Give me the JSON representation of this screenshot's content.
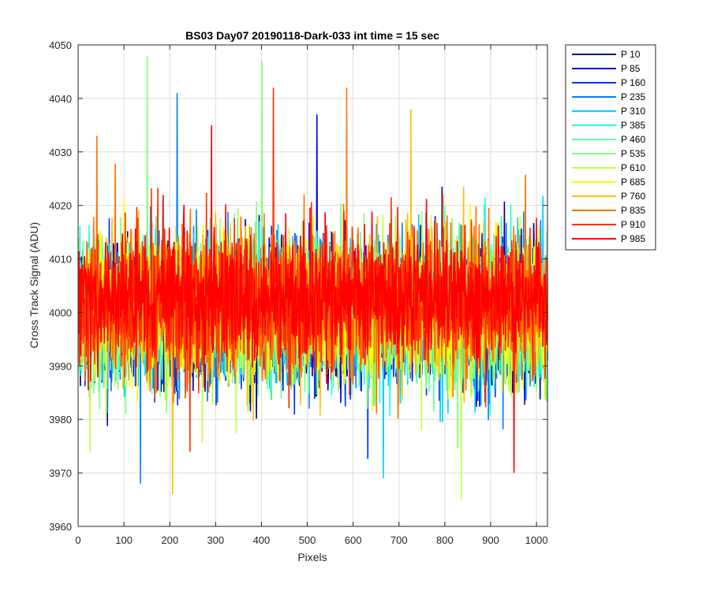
{
  "chart_data": {
    "type": "line",
    "title": "BS03 Day07 20190118-Dark-033 int time = 15 sec",
    "xlabel": "Pixels",
    "ylabel": "Cross Track Signal (ADU)",
    "xlim": [
      0,
      1024
    ],
    "ylim": [
      3960,
      4050
    ],
    "xticks": [
      "0",
      "100",
      "200",
      "300",
      "400",
      "500",
      "600",
      "700",
      "800",
      "900",
      "1000"
    ],
    "yticks": [
      "3960",
      "3970",
      "3980",
      "3990",
      "4000",
      "4010",
      "4020",
      "4030",
      "4040",
      "4050"
    ],
    "grid": true,
    "legend_position": "outside-top-right",
    "series": [
      {
        "name": "P 10",
        "color": "#00008f",
        "mean": 4000,
        "noise": 6.5
      },
      {
        "name": "P 85",
        "color": "#0000df",
        "mean": 4000,
        "noise": 6.5
      },
      {
        "name": "P 160",
        "color": "#0030ff",
        "mean": 4000,
        "noise": 6.5
      },
      {
        "name": "P 235",
        "color": "#0080ff",
        "mean": 4000,
        "noise": 6.5
      },
      {
        "name": "P 310",
        "color": "#00cfff",
        "mean": 4000,
        "noise": 6.5
      },
      {
        "name": "P 385",
        "color": "#20ffdf",
        "mean": 4000,
        "noise": 6.5
      },
      {
        "name": "P 460",
        "color": "#60ffa0",
        "mean": 4000,
        "noise": 6.5
      },
      {
        "name": "P 535",
        "color": "#80ff80",
        "mean": 4000,
        "noise": 6.5
      },
      {
        "name": "P 610",
        "color": "#c0ff40",
        "mean": 4000,
        "noise": 6.5
      },
      {
        "name": "P 685",
        "color": "#ffff00",
        "mean": 4001,
        "noise": 6.5
      },
      {
        "name": "P 760",
        "color": "#ffbf00",
        "mean": 4001,
        "noise": 6.5
      },
      {
        "name": "P 835",
        "color": "#ff7000",
        "mean": 4002,
        "noise": 6.5
      },
      {
        "name": "P 910",
        "color": "#ff3000",
        "mean": 4002,
        "noise": 6.5
      },
      {
        "name": "P 985",
        "color": "#ff0000",
        "mean": 4003,
        "noise": 5.5
      }
    ],
    "annotations": [
      {
        "series": "P 535",
        "x": 150,
        "y": 4048
      },
      {
        "series": "P 535",
        "x": 400,
        "y": 4047
      },
      {
        "series": "P 235",
        "x": 215,
        "y": 4041
      },
      {
        "series": "P 910",
        "x": 425,
        "y": 4042
      },
      {
        "series": "P 835",
        "x": 585,
        "y": 4042
      },
      {
        "series": "P 85",
        "x": 520,
        "y": 4037
      },
      {
        "series": "P 760",
        "x": 725,
        "y": 4038
      },
      {
        "series": "P 760",
        "x": 205,
        "y": 3966
      },
      {
        "series": "P 235",
        "x": 135,
        "y": 3968
      },
      {
        "series": "P 985",
        "x": 950,
        "y": 3970
      },
      {
        "series": "P 610",
        "x": 835,
        "y": 3965
      },
      {
        "series": "P 310",
        "x": 665,
        "y": 3969
      },
      {
        "series": "P 835",
        "x": 40,
        "y": 3973
      },
      {
        "series": "P 835",
        "x": 40,
        "y": 4033
      },
      {
        "series": "P 985",
        "x": 290,
        "y": 4035
      }
    ]
  }
}
